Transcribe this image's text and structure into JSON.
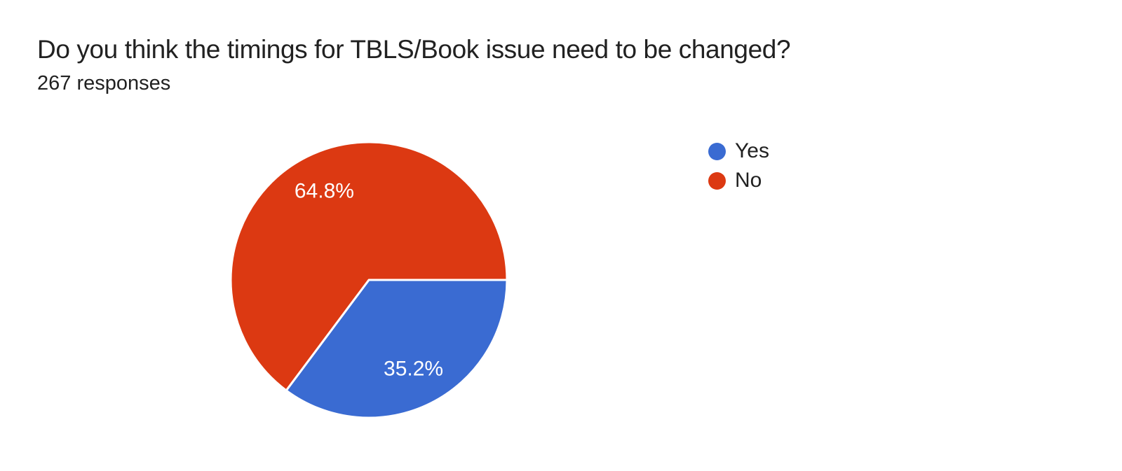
{
  "header": {
    "title": "Do you think the timings for TBLS/Book issue need to be changed?",
    "responses": "267 responses"
  },
  "chart_data": {
    "type": "pie",
    "title": "Do you think the timings for TBLS/Book issue need to be changed?",
    "subtitle": "267 responses",
    "total_responses": 267,
    "categories": [
      "Yes",
      "No"
    ],
    "values": [
      35.2,
      64.8
    ],
    "percent_labels": [
      "35.2%",
      "64.8%"
    ],
    "colors": [
      "#3a6bd2",
      "#dc3912"
    ],
    "slice_label_color": "#ffffff",
    "slice_separator_color": "#ffffff",
    "start_angle_deg": 0,
    "direction": "clockwise",
    "legend_position": "right",
    "background_color": "#ffffff"
  }
}
